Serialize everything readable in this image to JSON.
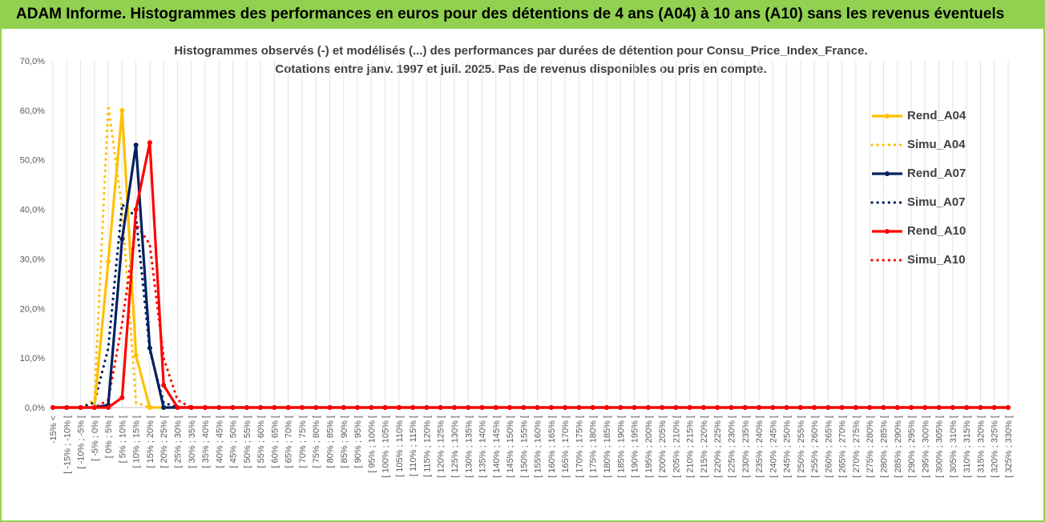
{
  "header": {
    "title": "ADAM Informe. Histogrammes des performances en euros pour des détentions de 4 ans (A04) à 10 ans (A10) sans les revenus éventuels"
  },
  "chart_data": {
    "type": "line",
    "title_lines": [
      "Histogrammes observés (-) et modélisés (...) des performances par durées de détention pour Consu_Price_Index_France.",
      "Cotations entre janv. 1997 et juil. 2025. Pas de revenus disponibles ou pris en compte."
    ],
    "xlabel": "",
    "ylabel": "",
    "ylim": [
      0,
      70
    ],
    "y_ticks": [
      "0,0%",
      "10,0%",
      "20,0%",
      "30,0%",
      "40,0%",
      "50,0%",
      "60,0%",
      "70,0%"
    ],
    "grid": "vertical",
    "legend_position": "right",
    "categories": [
      "-15% <",
      "[ -15% ; -10% [",
      "[ -10% ; -5% [",
      "[ -5% ; 0% [",
      "[ 0% ; 5% [",
      "[ 5% ; 10% [",
      "[ 10% ; 15% [",
      "[ 15% ; 20% [",
      "[ 20% ; 25% [",
      "[ 25% ; 30% [",
      "[ 30% ; 35% [",
      "[ 35% ; 40% [",
      "[ 40% ; 45% [",
      "[ 45% ; 50% [",
      "[ 50% ; 55% [",
      "[ 55% ; 60% [",
      "[ 60% ; 65% [",
      "[ 65% ; 70% [",
      "[ 70% ; 75% [",
      "[ 75% ; 80% [",
      "[ 80% ; 85% [",
      "[ 85% ; 90% [",
      "[ 90% ; 95% [",
      "[ 95% ; 100% [",
      "[ 100% ; 105% [",
      "[ 105% ; 110% [",
      "[ 110% ; 115% [",
      "[ 115% ; 120% [",
      "[ 120% ; 125% [",
      "[ 125% ; 130% [",
      "[ 130% ; 135% [",
      "[ 135% ; 140% [",
      "[ 140% ; 145% [",
      "[ 145% ; 150% [",
      "[ 150% ; 155% [",
      "[ 155% ; 160% [",
      "[ 160% ; 165% [",
      "[ 165% ; 170% [",
      "[ 170% ; 175% [",
      "[ 175% ; 180% [",
      "[ 180% ; 185% [",
      "[ 185% ; 190% [",
      "[ 190% ; 195% [",
      "[ 195% ; 200% [",
      "[ 200% ; 205% [",
      "[ 205% ; 210% [",
      "[ 210% ; 215% [",
      "[ 215% ; 220% [",
      "[ 220% ; 225% [",
      "[ 225% ; 230% [",
      "[ 230% ; 235% [",
      "[ 235% ; 240% [",
      "[ 240% ; 245% [",
      "[ 245% ; 250% [",
      "[ 250% ; 255% [",
      "[ 255% ; 260% [",
      "[ 260% ; 265% [",
      "[ 265% ; 270% [",
      "[ 270% ; 275% [",
      "[ 275% ; 280% [",
      "[ 280% ; 285% [",
      "[ 285% ; 290% [",
      "[ 290% ; 295% [",
      "[ 295% ; 300% [",
      "[ 300% ; 305% [",
      "[ 305% ; 310% [",
      "[ 310% ; 315% [",
      "[ 315% ; 320% [",
      "[ 320% ; 325% [",
      "[ 325% ; 330% ["
    ],
    "series": [
      {
        "name": "Rend_A04",
        "color": "#FFC000",
        "style": "solid",
        "markers": true,
        "values": [
          0,
          0,
          0,
          0,
          29.5,
          60.0,
          10.5,
          0,
          0,
          0,
          0,
          0,
          0,
          0,
          0,
          0,
          0,
          0,
          0,
          0,
          0,
          0,
          0,
          0,
          0,
          0,
          0,
          0,
          0,
          0,
          0,
          0,
          0,
          0,
          0,
          0,
          0,
          0,
          0,
          0,
          0,
          0,
          0,
          0,
          0,
          0,
          0,
          0,
          0,
          0,
          0,
          0,
          0,
          0,
          0,
          0,
          0,
          0,
          0,
          0,
          0,
          0,
          0,
          0,
          0,
          0,
          0,
          0,
          0,
          0
        ]
      },
      {
        "name": "Simu_A04",
        "color": "#FFC000",
        "style": "dotted",
        "markers": false,
        "values": [
          0,
          0,
          0,
          1.5,
          61.0,
          40.0,
          1.0,
          0,
          0,
          0,
          0,
          0,
          0,
          0,
          0,
          0,
          0,
          0,
          0,
          0,
          0,
          0,
          0,
          0,
          0,
          0,
          0,
          0,
          0,
          0,
          0,
          0,
          0,
          0,
          0,
          0,
          0,
          0,
          0,
          0,
          0,
          0,
          0,
          0,
          0,
          0,
          0,
          0,
          0,
          0,
          0,
          0,
          0,
          0,
          0,
          0,
          0,
          0,
          0,
          0,
          0,
          0,
          0,
          0,
          0,
          0,
          0,
          0,
          0,
          0
        ]
      },
      {
        "name": "Rend_A07",
        "color": "#002060",
        "style": "solid",
        "markers": true,
        "values": [
          0,
          0,
          0,
          0,
          0.5,
          34.0,
          53.0,
          12.0,
          0,
          0,
          0,
          0,
          0,
          0,
          0,
          0,
          0,
          0,
          0,
          0,
          0,
          0,
          0,
          0,
          0,
          0,
          0,
          0,
          0,
          0,
          0,
          0,
          0,
          0,
          0,
          0,
          0,
          0,
          0,
          0,
          0,
          0,
          0,
          0,
          0,
          0,
          0,
          0,
          0,
          0,
          0,
          0,
          0,
          0,
          0,
          0,
          0,
          0,
          0,
          0,
          0,
          0,
          0,
          0,
          0,
          0,
          0,
          0,
          0,
          0
        ]
      },
      {
        "name": "Simu_A07",
        "color": "#002060",
        "style": "dotted",
        "markers": false,
        "values": [
          0,
          0,
          0,
          1.0,
          12.0,
          41.0,
          38.5,
          11.5,
          1.0,
          0,
          0,
          0,
          0,
          0,
          0,
          0,
          0,
          0,
          0,
          0,
          0,
          0,
          0,
          0,
          0,
          0,
          0,
          0,
          0,
          0,
          0,
          0,
          0,
          0,
          0,
          0,
          0,
          0,
          0,
          0,
          0,
          0,
          0,
          0,
          0,
          0,
          0,
          0,
          0,
          0,
          0,
          0,
          0,
          0,
          0,
          0,
          0,
          0,
          0,
          0,
          0,
          0,
          0,
          0,
          0,
          0,
          0,
          0,
          0,
          0
        ]
      },
      {
        "name": "Rend_A10",
        "color": "#FF0000",
        "style": "solid",
        "markers": true,
        "values": [
          0,
          0,
          0,
          0,
          0,
          2.0,
          40.0,
          53.5,
          4.5,
          0,
          0,
          0,
          0,
          0,
          0,
          0,
          0,
          0,
          0,
          0,
          0,
          0,
          0,
          0,
          0,
          0,
          0,
          0,
          0,
          0,
          0,
          0,
          0,
          0,
          0,
          0,
          0,
          0,
          0,
          0,
          0,
          0,
          0,
          0,
          0,
          0,
          0,
          0,
          0,
          0,
          0,
          0,
          0,
          0,
          0,
          0,
          0,
          0,
          0,
          0,
          0,
          0,
          0,
          0,
          0,
          0,
          0,
          0,
          0,
          0
        ]
      },
      {
        "name": "Simu_A10",
        "color": "#FF0000",
        "style": "dotted",
        "markers": false,
        "values": [
          0,
          0,
          0,
          0,
          1.5,
          17.0,
          37.0,
          33.0,
          10.0,
          1.5,
          0,
          0,
          0,
          0,
          0,
          0,
          0,
          0,
          0,
          0,
          0,
          0,
          0,
          0,
          0,
          0,
          0,
          0,
          0,
          0,
          0,
          0,
          0,
          0,
          0,
          0,
          0,
          0,
          0,
          0,
          0,
          0,
          0,
          0,
          0,
          0,
          0,
          0,
          0,
          0,
          0,
          0,
          0,
          0,
          0,
          0,
          0,
          0,
          0,
          0,
          0,
          0,
          0,
          0,
          0,
          0,
          0,
          0,
          0,
          0
        ]
      }
    ]
  }
}
